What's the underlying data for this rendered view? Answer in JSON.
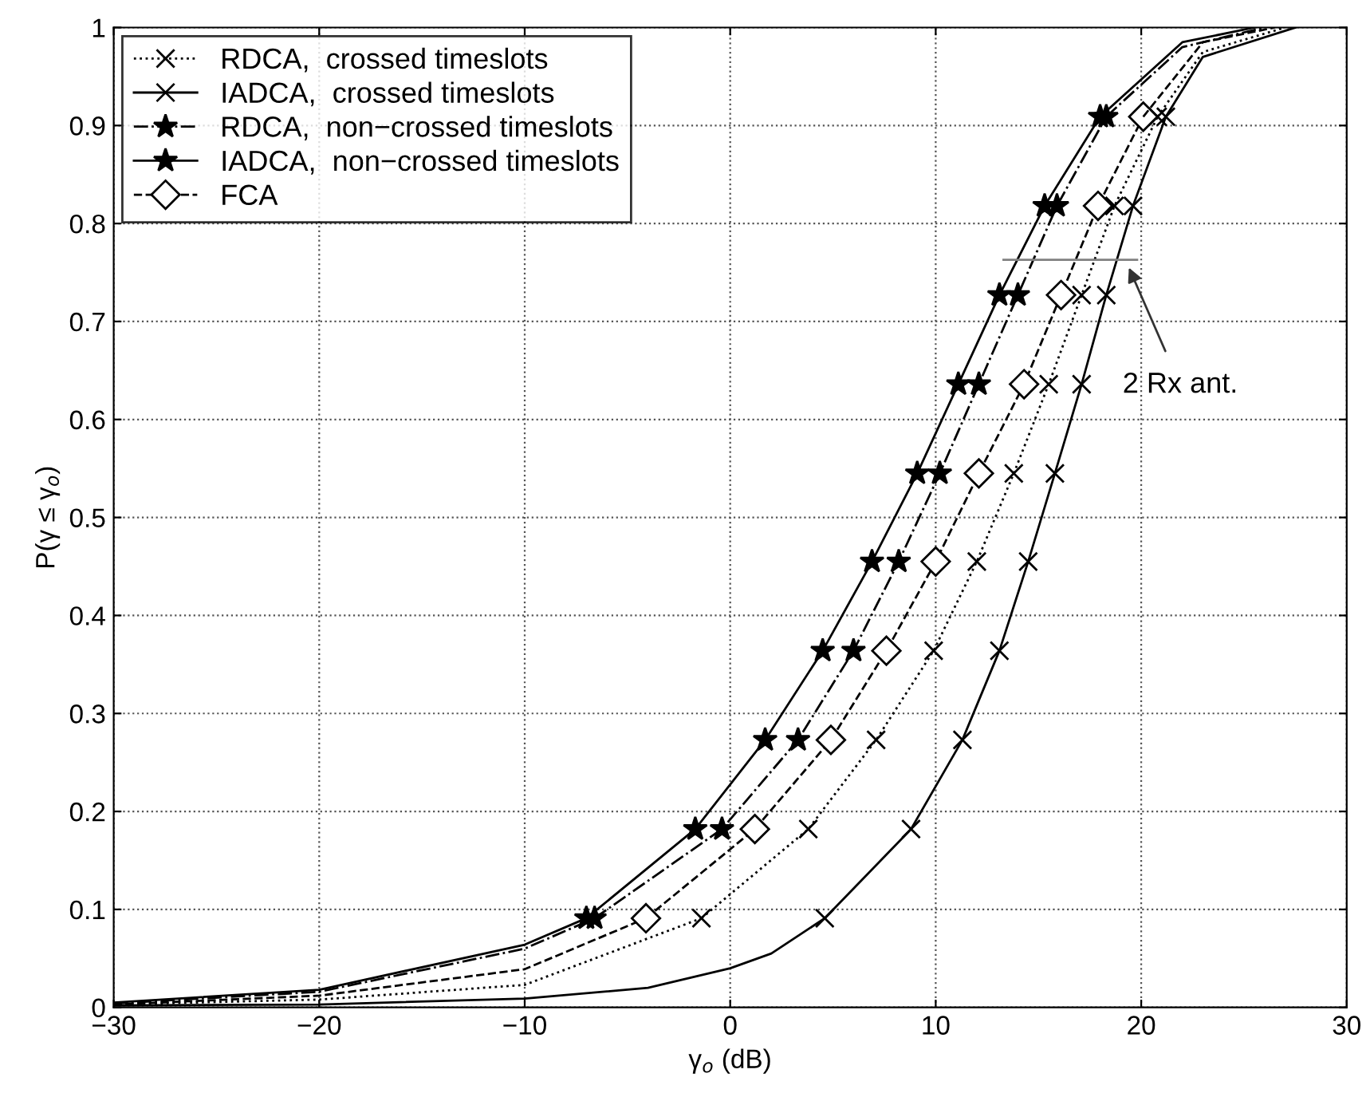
{
  "chart_data": {
    "type": "line",
    "xlabel": "γ$_{o}$ (dB)",
    "ylabel": "P(γ ≤ γ$_{o}$)",
    "xlim": [
      -30,
      30
    ],
    "xticks": [
      {
        "value": -30,
        "label": "−30"
      },
      {
        "value": -20,
        "label": "−20"
      },
      {
        "value": -10,
        "label": "−10"
      },
      0,
      10,
      20,
      30
    ],
    "ylim": [
      0,
      1
    ],
    "yticks": [
      0,
      0.1,
      0.2,
      0.3,
      0.4,
      0.5,
      0.6,
      0.7,
      0.8,
      0.9,
      1
    ],
    "grid": true,
    "legend": "top left",
    "series": [
      {
        "color": "#000000",
        "line_style": "dotted",
        "marker": "none",
        "x": [
          -30,
          -20,
          -10,
          -1.4
        ],
        "values": [
          0.003,
          0.008,
          0.023,
          0.091
        ]
      },
      {
        "name": "RDCA,  crossed timeslots",
        "color": "#000000",
        "line_style": "dotted",
        "marker": "cross",
        "x": [
          -1.4,
          3.8,
          7.1,
          9.9,
          12.0,
          13.8,
          15.5,
          17.1,
          18.7,
          20.8
        ],
        "values": [
          0.091,
          0.182,
          0.273,
          0.364,
          0.455,
          0.545,
          0.636,
          0.727,
          0.818,
          0.909
        ]
      },
      {
        "color": "#000000",
        "line_style": "dotted",
        "marker": "none",
        "x": [
          20.8,
          23,
          27
        ],
        "values": [
          0.909,
          0.975,
          1.0
        ]
      },
      {
        "color": "#000000",
        "line_style": "solid",
        "marker": "none",
        "x": [
          -30,
          -20,
          -10,
          -4,
          0,
          2,
          4.6
        ],
        "values": [
          0.002,
          0.003,
          0.009,
          0.02,
          0.04,
          0.055,
          0.091
        ]
      },
      {
        "name": "IADCA,  crossed timeslots",
        "color": "#000000",
        "line_style": "solid",
        "marker": "cross",
        "x": [
          4.6,
          8.8,
          11.3,
          13.1,
          14.5,
          15.8,
          17.1,
          18.3,
          19.6,
          21.2
        ],
        "values": [
          0.091,
          0.182,
          0.273,
          0.364,
          0.455,
          0.545,
          0.636,
          0.727,
          0.818,
          0.909
        ]
      },
      {
        "color": "#000000",
        "line_style": "solid",
        "marker": "none",
        "x": [
          21.2,
          23,
          27.5
        ],
        "values": [
          0.909,
          0.97,
          1.0
        ]
      },
      {
        "color": "#000000",
        "line_style": "dashdot",
        "marker": "none",
        "x": [
          -30,
          -20,
          -10,
          -6.6
        ],
        "values": [
          0.004,
          0.016,
          0.06,
          0.091
        ]
      },
      {
        "name": "RDCA,  non−crossed timeslots",
        "color": "#000000",
        "line_style": "dashdot",
        "marker": "star",
        "x": [
          -6.6,
          -0.4,
          3.3,
          6.0,
          8.2,
          10.2,
          12.1,
          14.0,
          15.9,
          18.3
        ],
        "values": [
          0.091,
          0.182,
          0.273,
          0.364,
          0.455,
          0.545,
          0.636,
          0.727,
          0.818,
          0.909
        ]
      },
      {
        "color": "#000000",
        "line_style": "dashdot",
        "marker": "none",
        "x": [
          18.3,
          22,
          26
        ],
        "values": [
          0.909,
          0.98,
          1.0
        ]
      },
      {
        "color": "#000000",
        "line_style": "solid",
        "marker": "none",
        "x": [
          -30,
          -20,
          -10,
          -7.0
        ],
        "values": [
          0.005,
          0.018,
          0.064,
          0.091
        ]
      },
      {
        "name": "IADCA,  non−crossed timeslots",
        "color": "#000000",
        "line_style": "solid",
        "marker": "star",
        "x": [
          -7.0,
          -1.7,
          1.7,
          4.5,
          6.9,
          9.1,
          11.1,
          13.1,
          15.3,
          18.0
        ],
        "values": [
          0.091,
          0.182,
          0.273,
          0.364,
          0.455,
          0.545,
          0.636,
          0.727,
          0.818,
          0.909
        ]
      },
      {
        "color": "#000000",
        "line_style": "solid",
        "marker": "none",
        "x": [
          18.0,
          22,
          25.5
        ],
        "values": [
          0.909,
          0.985,
          1.0
        ]
      },
      {
        "color": "#000000",
        "line_style": "dashed",
        "marker": "none",
        "x": [
          -30,
          -20,
          -10,
          -4.1
        ],
        "values": [
          0.003,
          0.012,
          0.039,
          0.091
        ]
      },
      {
        "name": "FCA",
        "color": "#000000",
        "line_style": "dashed",
        "marker": "diamond",
        "x": [
          -4.1,
          1.2,
          4.9,
          7.6,
          10.0,
          12.1,
          14.3,
          16.1,
          17.9,
          20.1
        ],
        "values": [
          0.091,
          0.182,
          0.273,
          0.364,
          0.455,
          0.545,
          0.636,
          0.727,
          0.818,
          0.909
        ]
      },
      {
        "color": "#000000",
        "line_style": "dashed",
        "marker": "none",
        "x": [
          20.1,
          23,
          26.5
        ],
        "values": [
          0.909,
          0.985,
          1.0
        ]
      },
      {
        "color": "#808080",
        "line_style": "solid",
        "marker": "none",
        "x": [
          13.3,
          19.8
        ],
        "values": [
          0.763,
          0.763
        ]
      }
    ],
    "annotations": [
      {
        "text": "2 Rx ant.",
        "x": 19.4,
        "y": 0.755
      }
    ]
  }
}
